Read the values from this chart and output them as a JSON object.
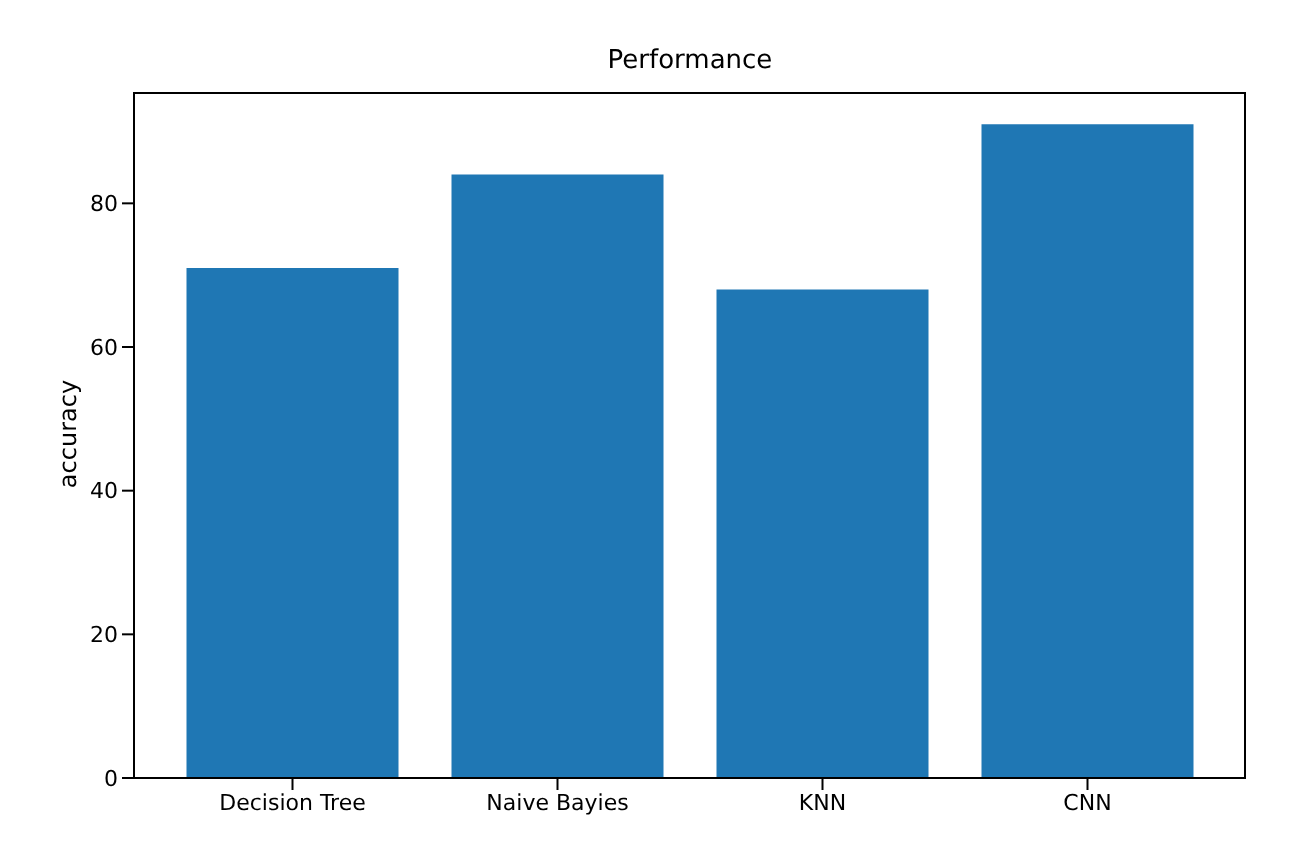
{
  "chart_data": {
    "type": "bar",
    "title": "Performance",
    "ylabel": "accuracy",
    "categories": [
      "Decision Tree",
      "Naive Bayies",
      "KNN",
      "CNN"
    ],
    "values": [
      71,
      84,
      68,
      91
    ],
    "color": "#1f77b4",
    "ylim": [
      0,
      95.5
    ],
    "yticks": [
      0,
      20,
      40,
      60,
      80
    ],
    "grid": false
  }
}
